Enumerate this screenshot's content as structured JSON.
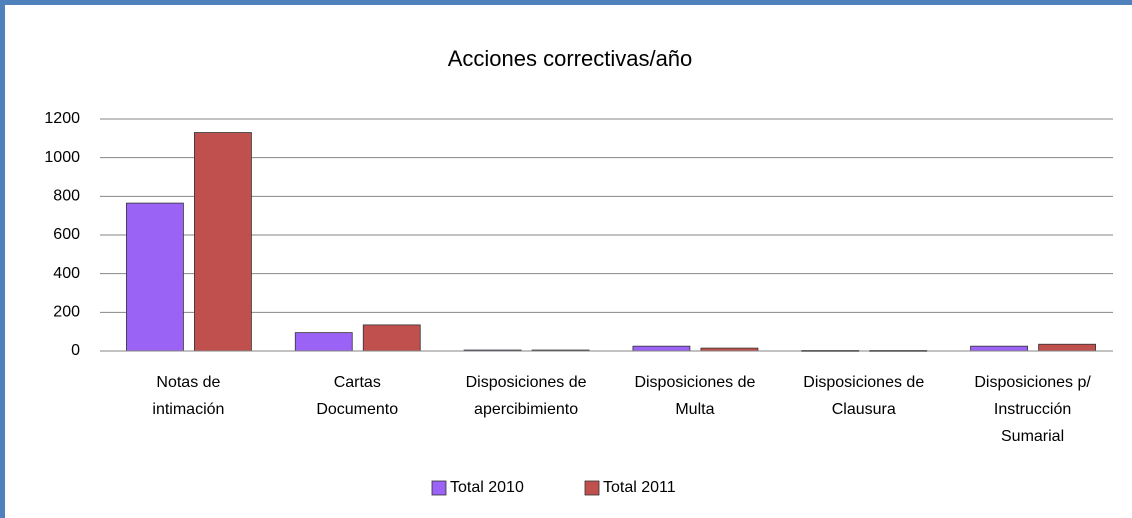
{
  "chart_data": {
    "type": "bar",
    "title": "Acciones correctivas/año",
    "categories": [
      [
        "Notas de",
        "intimación"
      ],
      [
        "Cartas",
        "Documento"
      ],
      [
        "Disposiciones de",
        "apercibimiento"
      ],
      [
        "Disposiciones de",
        "Multa"
      ],
      [
        "Disposiciones de",
        "Clausura"
      ],
      [
        "Disposiciones p/",
        "Instrucción",
        "Sumarial"
      ]
    ],
    "series": [
      {
        "name": "Total 2010",
        "color": "#9a62f5",
        "values": [
          765,
          95,
          5,
          25,
          3,
          25
        ]
      },
      {
        "name": "Total 2011",
        "color": "#c0504d",
        "values": [
          1130,
          135,
          5,
          15,
          3,
          35
        ]
      }
    ],
    "ylim": [
      0,
      1200
    ],
    "yticks": [
      0,
      200,
      400,
      600,
      800,
      1000,
      1200
    ],
    "grid": true,
    "legend": "bottom"
  }
}
